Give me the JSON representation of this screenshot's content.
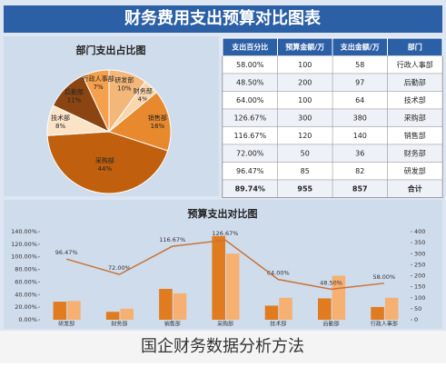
{
  "header": {
    "title": "财务费用支出预算对比图表"
  },
  "table": {
    "header": [
      "部门",
      "支出金额/万",
      "预算金额/万",
      "支出百分比"
    ],
    "rows": [
      [
        "行政人事部",
        "58",
        "100",
        "58.00%"
      ],
      [
        "后勤部",
        "97",
        "200",
        "48.50%"
      ],
      [
        "技术部",
        "64",
        "100",
        "64.00%"
      ],
      [
        "采购部",
        "380",
        "300",
        "126.67%"
      ],
      [
        "销售部",
        "140",
        "120",
        "116.67%"
      ],
      [
        "财务部",
        "36",
        "50",
        "72.00%"
      ],
      [
        "研发部",
        "82",
        "85",
        "96.47%"
      ],
      [
        "合计",
        "857",
        "955",
        "89.74%"
      ]
    ]
  },
  "chart_data": [
    {
      "type": "pie",
      "title": "部门支出占比图",
      "categories": [
        "行政人事部",
        "后勤部",
        "技术部",
        "采购部",
        "销售部",
        "财务部",
        "研发部"
      ],
      "values": [
        7,
        11,
        8,
        44,
        16,
        4,
        10
      ],
      "value_labels": [
        "7%",
        "11%",
        "8%",
        "44%",
        "16%",
        "4%",
        "10%"
      ],
      "colors": [
        "#f5a04c",
        "#8b4513",
        "#fbe3c8",
        "#c0600f",
        "#e8892d",
        "#f9d6ae",
        "#f3b77a"
      ]
    },
    {
      "type": "bar",
      "title": "预算支出对比图",
      "categories": [
        "行政人事部",
        "后勤部",
        "技术部",
        "采购部",
        "销售部",
        "财务部",
        "研发部"
      ],
      "series": [
        {
          "name": "支出金额/万",
          "color": "#e07b20",
          "values": [
            58,
            97,
            64,
            380,
            140,
            36,
            82
          ],
          "axis": "y2"
        },
        {
          "name": "预算金额/万",
          "color": "#f5b072",
          "values": [
            100,
            200,
            100,
            300,
            120,
            50,
            85
          ],
          "axis": "y2"
        },
        {
          "name": "支出百分比",
          "color": "#c8743a",
          "type": "line",
          "values": [
            58,
            48.5,
            64,
            126.67,
            116.67,
            72,
            96.47
          ],
          "value_labels": [
            "58.00%",
            "48.50%",
            "64.00%",
            "126.67%",
            "116.67%",
            "72.00%",
            "96.47%"
          ]
        }
      ],
      "ylim": [
        0,
        140
      ],
      "yticks": [
        {
          "value": 0,
          "label": "0.00%"
        },
        {
          "value": 20,
          "label": "20.00%"
        },
        {
          "value": 40,
          "label": "40.00%"
        },
        {
          "value": 60,
          "label": "60.00%"
        },
        {
          "value": 80,
          "label": "80.00%"
        },
        {
          "value": 100,
          "label": "100.00%"
        },
        {
          "value": 120,
          "label": "120.00%"
        },
        {
          "value": 140,
          "label": "140.00%"
        }
      ],
      "y2lim": [
        0,
        400
      ],
      "y2ticks": [
        0,
        50,
        100,
        150,
        200,
        250,
        300,
        350,
        400
      ]
    }
  ],
  "caption": "国企财务数据分析方法"
}
